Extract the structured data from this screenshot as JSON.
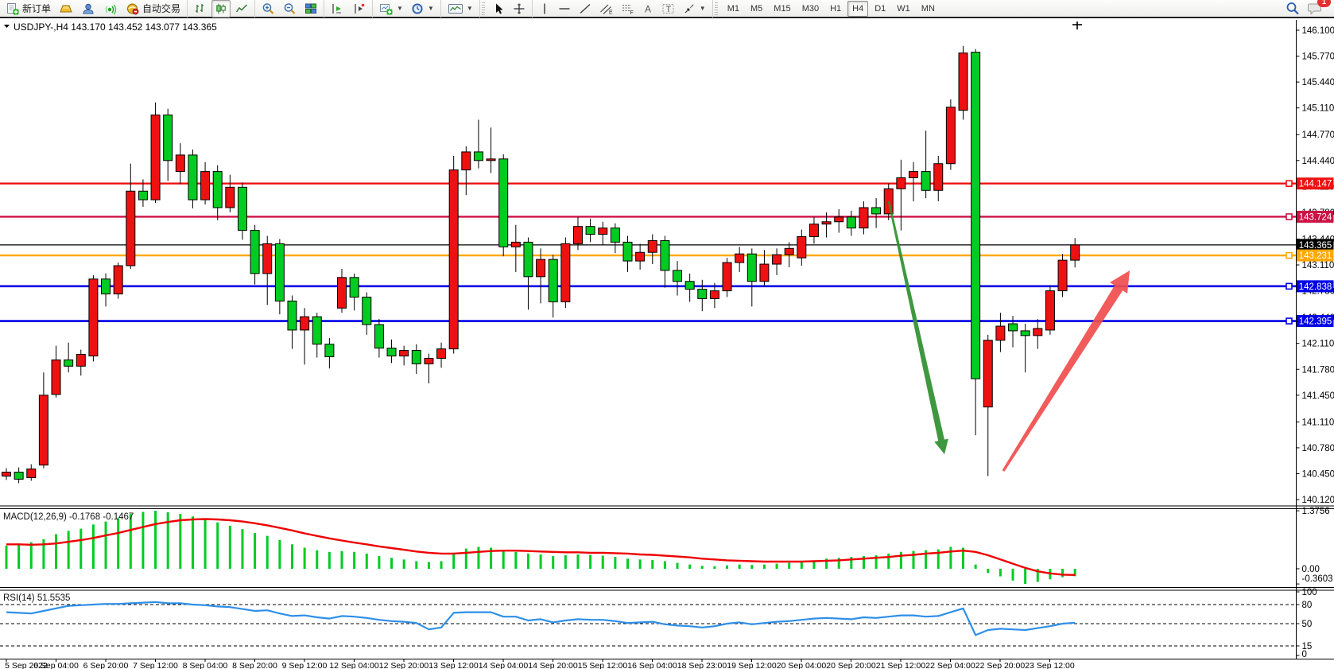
{
  "toolbar": {
    "new_order_label": "新订单",
    "auto_trading_label": "自动交易",
    "timeframes": [
      "M1",
      "M5",
      "M15",
      "M30",
      "H1",
      "H4",
      "D1",
      "W1",
      "MN"
    ],
    "active_timeframe": "H4",
    "notification_badge": "1",
    "icon_names": [
      "new-order-icon",
      "gold-ingot-icon",
      "profile-icon",
      "signal-icon",
      "auto-trading-icon",
      "bar-chart-icon",
      "candlestick-chart-icon",
      "line-chart-icon",
      "zoom-in-icon",
      "zoom-out-icon",
      "tile-windows-icon",
      "auto-scroll-icon",
      "chart-shift-icon",
      "new-chart-icon",
      "period-clock-icon",
      "indicator-window-icon",
      "cursor-icon",
      "crosshair-icon",
      "vertical-line-icon",
      "horizontal-line-icon",
      "trendline-icon",
      "channel-icon",
      "fibonacci-icon",
      "text-icon",
      "text-label-icon",
      "arrows-tool-icon",
      "search-icon",
      "chat-icon"
    ]
  },
  "chart": {
    "symbol": "USDJPY-,H4",
    "ohlc_line": "143.170 143.452 143.077 143.365",
    "current_price": "143.365",
    "price_axis_ticks": [
      "146.100",
      "145.770",
      "145.440",
      "145.110",
      "144.770",
      "144.440",
      "144.110",
      "143.780",
      "143.440",
      "143.110",
      "142.780",
      "142.440",
      "142.110",
      "141.780",
      "141.450",
      "141.110",
      "140.780",
      "140.450",
      "140.120"
    ],
    "hlines": [
      {
        "price": 144.147,
        "label": "144.147",
        "color": "#ee1111",
        "width": 2.4,
        "anchor": true
      },
      {
        "price": 143.724,
        "label": "143.724",
        "color": "#cc1144",
        "width": 2.4,
        "anchor": true
      },
      {
        "price": 143.365,
        "label": "143.365",
        "color": "#000000",
        "width": 1.2,
        "anchor": false
      },
      {
        "price": 143.231,
        "label": "143.231",
        "color": "#ffa800",
        "width": 2.4,
        "anchor": true
      },
      {
        "price": 142.838,
        "label": "142.838",
        "color": "#0000e6",
        "width": 2.6,
        "anchor": true
      },
      {
        "price": 142.395,
        "label": "142.395",
        "color": "#0000e6",
        "width": 2.6,
        "anchor": true
      }
    ],
    "date_labels": [
      "5 Sep 2022",
      "6 Sep 04:00",
      "6 Sep 20:00",
      "7 Sep 12:00",
      "8 Sep 04:00",
      "8 Sep 20:00",
      "9 Sep 12:00",
      "12 Sep 04:00",
      "12 Sep 20:00",
      "13 Sep 12:00",
      "14 Sep 04:00",
      "14 Sep 20:00",
      "15 Sep 12:00",
      "16 Sep 04:00",
      "18 Sep 23:00",
      "19 Sep 12:00",
      "20 Sep 04:00",
      "20 Sep 20:00",
      "21 Sep 12:00",
      "22 Sep 04:00",
      "22 Sep 20:00",
      "23 Sep 12:00"
    ],
    "arrows": [
      {
        "name": "down-arrow",
        "color": "#2f8f2f",
        "from": [
          1118,
          253
        ],
        "to": [
          1188,
          571
        ]
      },
      {
        "name": "up-arrow",
        "color": "#f14d4d",
        "from": [
          1262,
          592
        ],
        "to": [
          1421,
          340
        ]
      }
    ],
    "colors": {
      "bull": "#ee1111",
      "bear": "#00cc22",
      "wick": "#000000",
      "macd_hist": "#00cc22",
      "macd_signal": "#ee0000",
      "rsi": "#2e8fe8"
    }
  },
  "macd": {
    "label": "MACD(12,26,9)",
    "values": "-0.1768 -0.1467",
    "axis_ticks": [
      "1.3756",
      "0.00",
      "-0.3603"
    ]
  },
  "rsi": {
    "label": "RSI(14)",
    "value": "51.5535",
    "axis_ticks": [
      "100",
      "80",
      "50",
      "15",
      "0"
    ],
    "levels": [
      80,
      50,
      15
    ]
  },
  "chart_data": {
    "type": "candlestick",
    "title": "USDJPY- H4",
    "ylim": [
      140.12,
      146.1
    ],
    "candles_ohlc": [
      [
        140.42,
        140.52,
        140.37,
        140.47
      ],
      [
        140.47,
        140.53,
        140.33,
        140.38
      ],
      [
        140.4,
        140.57,
        140.36,
        140.51
      ],
      [
        140.56,
        141.74,
        140.52,
        141.45
      ],
      [
        141.46,
        142.08,
        141.42,
        141.9
      ],
      [
        141.9,
        142.12,
        141.74,
        141.82
      ],
      [
        141.82,
        142.03,
        141.7,
        141.97
      ],
      [
        141.95,
        142.98,
        141.88,
        142.93
      ],
      [
        142.93,
        143.0,
        142.58,
        142.74
      ],
      [
        142.74,
        143.14,
        142.68,
        143.1
      ],
      [
        143.1,
        144.4,
        143.06,
        144.05
      ],
      [
        144.05,
        144.2,
        143.85,
        143.94
      ],
      [
        143.94,
        145.18,
        143.9,
        145.02
      ],
      [
        145.02,
        145.1,
        144.18,
        144.44
      ],
      [
        144.3,
        144.66,
        144.14,
        144.51
      ],
      [
        144.51,
        144.58,
        143.83,
        143.94
      ],
      [
        143.94,
        144.42,
        143.88,
        144.3
      ],
      [
        144.3,
        144.38,
        143.68,
        143.84
      ],
      [
        143.84,
        144.26,
        143.78,
        144.1
      ],
      [
        144.1,
        144.16,
        143.43,
        143.55
      ],
      [
        143.55,
        143.62,
        142.86,
        143.0
      ],
      [
        143.0,
        143.48,
        142.6,
        143.38
      ],
      [
        143.38,
        143.44,
        142.48,
        142.65
      ],
      [
        142.65,
        142.72,
        142.04,
        142.28
      ],
      [
        142.28,
        142.56,
        141.84,
        142.45
      ],
      [
        142.45,
        142.5,
        141.93,
        142.1
      ],
      [
        142.1,
        142.18,
        141.79,
        141.94
      ],
      [
        142.56,
        143.06,
        142.5,
        142.95
      ],
      [
        142.95,
        143.0,
        142.53,
        142.7
      ],
      [
        142.7,
        142.76,
        142.22,
        142.35
      ],
      [
        142.35,
        142.42,
        141.93,
        142.05
      ],
      [
        142.05,
        142.16,
        141.86,
        141.95
      ],
      [
        141.95,
        142.08,
        141.83,
        142.02
      ],
      [
        142.02,
        142.1,
        141.72,
        141.85
      ],
      [
        141.85,
        141.98,
        141.6,
        141.92
      ],
      [
        141.92,
        142.12,
        141.8,
        142.04
      ],
      [
        142.04,
        144.5,
        141.98,
        144.32
      ],
      [
        144.32,
        144.62,
        144.0,
        144.55
      ],
      [
        144.55,
        144.96,
        144.34,
        144.44
      ],
      [
        144.44,
        144.86,
        144.28,
        144.46
      ],
      [
        144.46,
        144.52,
        143.22,
        143.34
      ],
      [
        143.34,
        143.62,
        143.02,
        143.4
      ],
      [
        143.4,
        143.46,
        142.54,
        142.96
      ],
      [
        142.96,
        143.32,
        142.62,
        143.18
      ],
      [
        143.18,
        143.24,
        142.44,
        142.64
      ],
      [
        142.64,
        143.46,
        142.56,
        143.38
      ],
      [
        143.38,
        143.72,
        143.3,
        143.6
      ],
      [
        143.6,
        143.7,
        143.4,
        143.5
      ],
      [
        143.5,
        143.66,
        143.36,
        143.58
      ],
      [
        143.58,
        143.64,
        143.26,
        143.4
      ],
      [
        143.4,
        143.48,
        143.02,
        143.16
      ],
      [
        143.16,
        143.38,
        143.05,
        143.27
      ],
      [
        143.27,
        143.5,
        143.12,
        143.42
      ],
      [
        143.42,
        143.48,
        142.82,
        143.04
      ],
      [
        143.04,
        143.16,
        142.72,
        142.9
      ],
      [
        142.9,
        143.0,
        142.64,
        142.8
      ],
      [
        142.8,
        142.92,
        142.52,
        142.68
      ],
      [
        142.68,
        142.88,
        142.56,
        142.78
      ],
      [
        142.78,
        143.2,
        142.7,
        143.14
      ],
      [
        143.14,
        143.34,
        143.02,
        143.25
      ],
      [
        143.25,
        143.32,
        142.58,
        142.9
      ],
      [
        142.9,
        143.3,
        142.84,
        143.12
      ],
      [
        143.12,
        143.32,
        142.98,
        143.24
      ],
      [
        143.24,
        143.4,
        143.08,
        143.32
      ],
      [
        143.2,
        143.56,
        143.1,
        143.47
      ],
      [
        143.47,
        143.72,
        143.38,
        143.63
      ],
      [
        143.63,
        143.78,
        143.46,
        143.66
      ],
      [
        143.66,
        143.82,
        143.52,
        143.72
      ],
      [
        143.72,
        143.8,
        143.48,
        143.58
      ],
      [
        143.58,
        143.92,
        143.5,
        143.84
      ],
      [
        143.84,
        143.96,
        143.58,
        143.76
      ],
      [
        143.76,
        144.15,
        143.68,
        144.08
      ],
      [
        144.08,
        144.45,
        143.55,
        144.22
      ],
      [
        144.22,
        144.42,
        143.92,
        144.3
      ],
      [
        144.3,
        144.82,
        143.96,
        144.06
      ],
      [
        144.06,
        144.5,
        143.92,
        144.4
      ],
      [
        144.4,
        145.22,
        144.32,
        145.12
      ],
      [
        145.08,
        145.9,
        144.96,
        145.81
      ],
      [
        145.82,
        145.86,
        140.94,
        141.66
      ],
      [
        141.3,
        142.22,
        140.42,
        142.15
      ],
      [
        142.15,
        142.5,
        142.0,
        142.33
      ],
      [
        142.36,
        142.46,
        142.06,
        142.27
      ],
      [
        142.27,
        142.36,
        141.74,
        142.21
      ],
      [
        142.21,
        142.42,
        142.04,
        142.3
      ],
      [
        142.28,
        142.85,
        142.22,
        142.78
      ],
      [
        142.78,
        143.25,
        142.7,
        143.17
      ],
      [
        143.17,
        143.452,
        143.077,
        143.365
      ]
    ],
    "macd_histogram": [
      0.55,
      0.6,
      0.63,
      0.7,
      0.82,
      0.9,
      0.95,
      1.05,
      1.12,
      1.2,
      1.3,
      1.35,
      1.376,
      1.34,
      1.3,
      1.24,
      1.18,
      1.1,
      1.02,
      0.94,
      0.85,
      0.78,
      0.68,
      0.58,
      0.5,
      0.44,
      0.4,
      0.42,
      0.4,
      0.36,
      0.3,
      0.26,
      0.22,
      0.18,
      0.16,
      0.18,
      0.38,
      0.48,
      0.52,
      0.5,
      0.44,
      0.4,
      0.36,
      0.34,
      0.3,
      0.32,
      0.34,
      0.33,
      0.31,
      0.28,
      0.24,
      0.22,
      0.21,
      0.18,
      0.14,
      0.1,
      0.07,
      0.06,
      0.08,
      0.1,
      0.09,
      0.1,
      0.12,
      0.14,
      0.17,
      0.2,
      0.24,
      0.26,
      0.28,
      0.3,
      0.32,
      0.36,
      0.4,
      0.42,
      0.44,
      0.46,
      0.52,
      0.5,
      0.1,
      -0.1,
      -0.18,
      -0.28,
      -0.36,
      -0.31,
      -0.25,
      -0.2,
      -0.177
    ],
    "macd_signal": [
      0.58,
      0.58,
      0.57,
      0.58,
      0.6,
      0.64,
      0.68,
      0.73,
      0.79,
      0.85,
      0.92,
      0.99,
      1.06,
      1.11,
      1.15,
      1.17,
      1.18,
      1.17,
      1.15,
      1.12,
      1.08,
      1.03,
      0.97,
      0.91,
      0.84,
      0.78,
      0.72,
      0.67,
      0.62,
      0.58,
      0.53,
      0.49,
      0.45,
      0.41,
      0.38,
      0.36,
      0.36,
      0.38,
      0.4,
      0.42,
      0.43,
      0.43,
      0.42,
      0.41,
      0.4,
      0.39,
      0.39,
      0.38,
      0.38,
      0.37,
      0.36,
      0.34,
      0.33,
      0.31,
      0.29,
      0.27,
      0.24,
      0.22,
      0.2,
      0.19,
      0.18,
      0.17,
      0.17,
      0.17,
      0.17,
      0.18,
      0.19,
      0.2,
      0.22,
      0.24,
      0.26,
      0.28,
      0.31,
      0.33,
      0.36,
      0.38,
      0.41,
      0.43,
      0.4,
      0.32,
      0.22,
      0.12,
      0.02,
      -0.06,
      -0.11,
      -0.14,
      -0.147
    ],
    "rsi_series": [
      68,
      67,
      66,
      70,
      74,
      78,
      79,
      80,
      81,
      81,
      82,
      83,
      84,
      82,
      82,
      80,
      79,
      77,
      76,
      73,
      70,
      71,
      66,
      62,
      63,
      60,
      58,
      62,
      61,
      59,
      56,
      54,
      53,
      51,
      41,
      44,
      67,
      68,
      68,
      68,
      61,
      61,
      55,
      57,
      52,
      55,
      57,
      56,
      56,
      54,
      51,
      52,
      53,
      49,
      47,
      46,
      44,
      46,
      50,
      52,
      49,
      51,
      53,
      54,
      56,
      58,
      59,
      58,
      57,
      60,
      59,
      61,
      63,
      63,
      61,
      62,
      68,
      74,
      32,
      40,
      42,
      41,
      40,
      43,
      46,
      50,
      51.55
    ]
  }
}
